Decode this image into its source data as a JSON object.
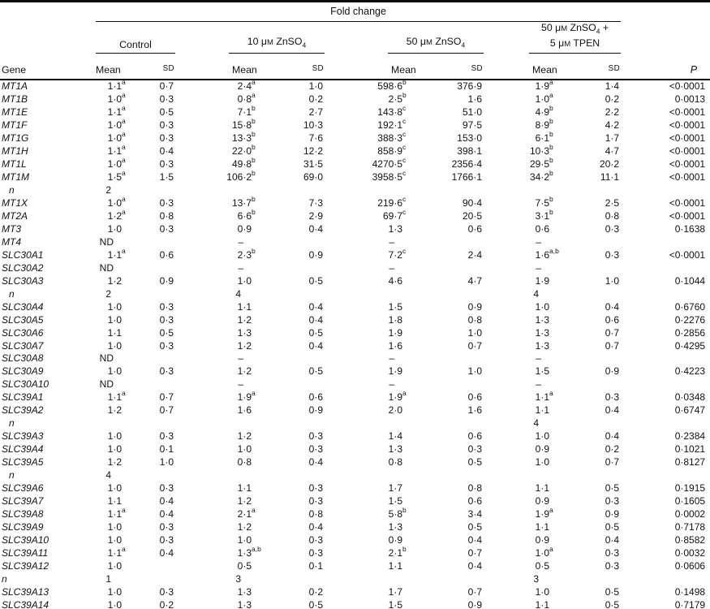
{
  "colors": {
    "text": "#111111",
    "background": "#ffffff",
    "rule": "#0a0a0a"
  },
  "table": {
    "span_header": "Fold change",
    "gene_header": "Gene",
    "mean_header": "Mean",
    "sd_header": "~SD~",
    "p_header": "P",
    "groups": [
      {
        "id": "control",
        "label_lines": [
          "Control"
        ]
      },
      {
        "id": "zn10",
        "label_lines": [
          "10 μ~M~ ZnSO_4_"
        ]
      },
      {
        "id": "zn50",
        "label_lines": [
          "50 μ~M~ ZnSO_4_"
        ]
      },
      {
        "id": "zn50-tpen",
        "label_lines": [
          "50 μ~M~ ZnSO_4_ +",
          "5 μ~M~ TPEN"
        ]
      }
    ],
    "rows": [
      {
        "gene": "MT1A",
        "kind": "gene",
        "cells": [
          "1·1^a^",
          "0·7",
          "2·4^a^",
          "1·0",
          "598·6^b^",
          "376·9",
          "1·9^a^",
          "1·4",
          "<0·0001"
        ]
      },
      {
        "gene": "MT1B",
        "kind": "gene",
        "cells": [
          "1·0^a^",
          "0·3",
          "0·8^a^",
          "0·2",
          "2·5^b^",
          "1·6",
          "1·0^a^",
          "0·2",
          "0·0013"
        ]
      },
      {
        "gene": "MT1E",
        "kind": "gene",
        "cells": [
          "1·1^a^",
          "0·5",
          "7·1^b^",
          "2·7",
          "143·8^c^",
          "51·0",
          "4·9^b^",
          "2·2",
          "<0·0001"
        ]
      },
      {
        "gene": "MT1F",
        "kind": "gene",
        "cells": [
          "1·0^a^",
          "0·3",
          "15·8^b^",
          "10·3",
          "192·1^c^",
          "97·5",
          "8·9^b^",
          "4·2",
          "<0·0001"
        ]
      },
      {
        "gene": "MT1G",
        "kind": "gene",
        "cells": [
          "1·0^a^",
          "0·3",
          "13·3^b^",
          "7·6",
          "388·3^c^",
          "153·0",
          "6·1^b^",
          "1·7",
          "<0·0001"
        ]
      },
      {
        "gene": "MT1H",
        "kind": "gene",
        "cells": [
          "1·1^a^",
          "0·4",
          "22·0^b^",
          "12·2",
          "858·9^c^",
          "398·1",
          "10·3^b^",
          "4·7",
          "<0·0001"
        ]
      },
      {
        "gene": "MT1L",
        "kind": "gene",
        "cells": [
          "1·0^a^",
          "0·3",
          "49·8^b^",
          "31·5",
          "4270·5^c^",
          "2356·4",
          "29·5^b^",
          "20·2",
          "<0·0001"
        ]
      },
      {
        "gene": "MT1M",
        "kind": "gene",
        "cells": [
          "1·5^a^",
          "1·5",
          "106·2^b^",
          "69·0",
          "3958·5^c^",
          "1766·1",
          "34·2^b^",
          "11·1",
          "<0·0001"
        ]
      },
      {
        "gene": "n",
        "kind": "n",
        "indent": true,
        "cells": [
          "2",
          "",
          "",
          "",
          "",
          "",
          "",
          "",
          ""
        ]
      },
      {
        "gene": "MT1X",
        "kind": "gene",
        "cells": [
          "1·0^a^",
          "0·3",
          "13·7^b^",
          "7·3",
          "219·6^c^",
          "90·4",
          "7·5^b^",
          "2·5",
          "<0·0001"
        ]
      },
      {
        "gene": "MT2A",
        "kind": "gene",
        "cells": [
          "1·2^a^",
          "0·8",
          "6·6^b^",
          "2·9",
          "69·7^c^",
          "20·5",
          "3·1^b^",
          "0·8",
          "<0·0001"
        ]
      },
      {
        "gene": "MT3",
        "kind": "gene",
        "cells": [
          "1·0",
          "0·3",
          "0·9",
          "0·4",
          "1·3",
          "0·6",
          "0·6",
          "0·3",
          "0·1638"
        ]
      },
      {
        "gene": "MT4",
        "kind": "gene",
        "cells": [
          "ND",
          "",
          "–",
          "",
          "–",
          "",
          "–",
          "",
          ""
        ]
      },
      {
        "gene": "SLC30A1",
        "kind": "gene",
        "cells": [
          "1·1^a^",
          "0·6",
          "2·3^b^",
          "0·9",
          "7·2^c^",
          "2·4",
          "1·6^a,b^",
          "0·3",
          "<0·0001"
        ]
      },
      {
        "gene": "SLC30A2",
        "kind": "gene",
        "cells": [
          "ND",
          "",
          "–",
          "",
          "–",
          "",
          "–",
          "",
          ""
        ]
      },
      {
        "gene": "SLC30A3",
        "kind": "gene",
        "cells": [
          "1·2",
          "0·9",
          "1·0",
          "0·5",
          "4·6",
          "4·7",
          "1·9",
          "1·0",
          "0·1044"
        ]
      },
      {
        "gene": "n",
        "kind": "n",
        "indent": true,
        "cells": [
          "2",
          "",
          "4",
          "",
          "",
          "",
          "4",
          "",
          ""
        ]
      },
      {
        "gene": "SLC30A4",
        "kind": "gene",
        "cells": [
          "1·0",
          "0·3",
          "1·1",
          "0·4",
          "1·5",
          "0·9",
          "1·0",
          "0·4",
          "0·6760"
        ]
      },
      {
        "gene": "SLC30A5",
        "kind": "gene",
        "cells": [
          "1·0",
          "0·3",
          "1·2",
          "0·4",
          "1·8",
          "0·8",
          "1·3",
          "0·6",
          "0·2276"
        ]
      },
      {
        "gene": "SLC30A6",
        "kind": "gene",
        "cells": [
          "1·1",
          "0·5",
          "1·3",
          "0·5",
          "1·9",
          "1·0",
          "1·3",
          "0·7",
          "0·2856"
        ]
      },
      {
        "gene": "SLC30A7",
        "kind": "gene",
        "cells": [
          "1·0",
          "0·3",
          "1·2",
          "0·4",
          "1·6",
          "0·7",
          "1·3",
          "0·7",
          "0·4295"
        ]
      },
      {
        "gene": "SLC30A8",
        "kind": "gene",
        "cells": [
          "ND",
          "",
          "–",
          "",
          "–",
          "",
          "–",
          "",
          ""
        ]
      },
      {
        "gene": "SLC30A9",
        "kind": "gene",
        "cells": [
          "1·0",
          "0·3",
          "1·2",
          "0·5",
          "1·9",
          "1·0",
          "1·5",
          "0·9",
          "0·4223"
        ]
      },
      {
        "gene": "SLC30A10",
        "kind": "gene",
        "cells": [
          "ND",
          "",
          "–",
          "",
          "–",
          "",
          "–",
          "",
          ""
        ]
      },
      {
        "gene": "SLC39A1",
        "kind": "gene",
        "cells": [
          "1·1^a^",
          "0·7",
          "1·9^a^",
          "0·6",
          "1·9^a^",
          "0·6",
          "1·1^a^",
          "0·3",
          "0·0348"
        ]
      },
      {
        "gene": "SLC39A2",
        "kind": "gene",
        "cells": [
          "1·2",
          "0·7",
          "1·6",
          "0·9",
          "2·0",
          "1·6",
          "1·1",
          "0·4",
          "0·6747"
        ]
      },
      {
        "gene": "n",
        "kind": "n",
        "indent": true,
        "cells": [
          "",
          "",
          "",
          "",
          "",
          "",
          "4",
          "",
          ""
        ]
      },
      {
        "gene": "SLC39A3",
        "kind": "gene",
        "cells": [
          "1·0",
          "0·3",
          "1·2",
          "0·3",
          "1·4",
          "0·6",
          "1·0",
          "0·4",
          "0·2384"
        ]
      },
      {
        "gene": "SLC39A4",
        "kind": "gene",
        "cells": [
          "1·0",
          "0·1",
          "1·0",
          "0·3",
          "1·3",
          "0·3",
          "0·9",
          "0·2",
          "0·1021"
        ]
      },
      {
        "gene": "SLC39A5",
        "kind": "gene",
        "cells": [
          "1·2",
          "1·0",
          "0·8",
          "0·4",
          "0·8",
          "0·5",
          "1·0",
          "0·7",
          "0·8127"
        ]
      },
      {
        "gene": "n",
        "kind": "n",
        "indent": true,
        "cells": [
          "4",
          "",
          "",
          "",
          "",
          "",
          "",
          "",
          ""
        ]
      },
      {
        "gene": "SLC39A6",
        "kind": "gene",
        "cells": [
          "1·0",
          "0·3",
          "1·1",
          "0·3",
          "1·7",
          "0·8",
          "1·1",
          "0·5",
          "0·1915"
        ]
      },
      {
        "gene": "SLC39A7",
        "kind": "gene",
        "cells": [
          "1·1",
          "0·4",
          "1·2",
          "0·3",
          "1·5",
          "0·6",
          "0·9",
          "0·3",
          "0·1605"
        ]
      },
      {
        "gene": "SLC39A8",
        "kind": "gene",
        "cells": [
          "1·1^a^",
          "0·4",
          "2·1^a^",
          "0·8",
          "5·8^b^",
          "3·4",
          "1·9^a^",
          "0·9",
          "0·0002"
        ]
      },
      {
        "gene": "SLC39A9",
        "kind": "gene",
        "cells": [
          "1·0",
          "0·3",
          "1·2",
          "0·4",
          "1·3",
          "0·5",
          "1·1",
          "0·5",
          "0·7178"
        ]
      },
      {
        "gene": "SLC39A10",
        "kind": "gene",
        "cells": [
          "1·0",
          "0·3",
          "1·0",
          "0·3",
          "0·9",
          "0·4",
          "0·9",
          "0·4",
          "0·8582"
        ]
      },
      {
        "gene": "SLC39A11",
        "kind": "gene",
        "cells": [
          "1·1^a^",
          "0·4",
          "1·3^a,b^",
          "0·3",
          "2·1^b^",
          "0·7",
          "1·0^a^",
          "0·3",
          "0·0032"
        ]
      },
      {
        "gene": "SLC39A12",
        "kind": "gene",
        "cells": [
          "1·0",
          "",
          "0·5",
          "0·1",
          "1·1",
          "0·4",
          "0·5",
          "0·3",
          "0·0606"
        ]
      },
      {
        "gene": "n",
        "kind": "n",
        "indent": false,
        "cells": [
          "1",
          "",
          "3",
          "",
          "",
          "",
          "3",
          "",
          ""
        ]
      },
      {
        "gene": "SLC39A13",
        "kind": "gene",
        "cells": [
          "1·0",
          "0·3",
          "1·3",
          "0·2",
          "1·7",
          "0·7",
          "1·0",
          "0·5",
          "0·1498"
        ]
      },
      {
        "gene": "SLC39A14",
        "kind": "gene",
        "cells": [
          "1·0",
          "0·2",
          "1·3",
          "0·5",
          "1·5",
          "0·9",
          "1·1",
          "0·5",
          "0·7179"
        ]
      }
    ]
  }
}
